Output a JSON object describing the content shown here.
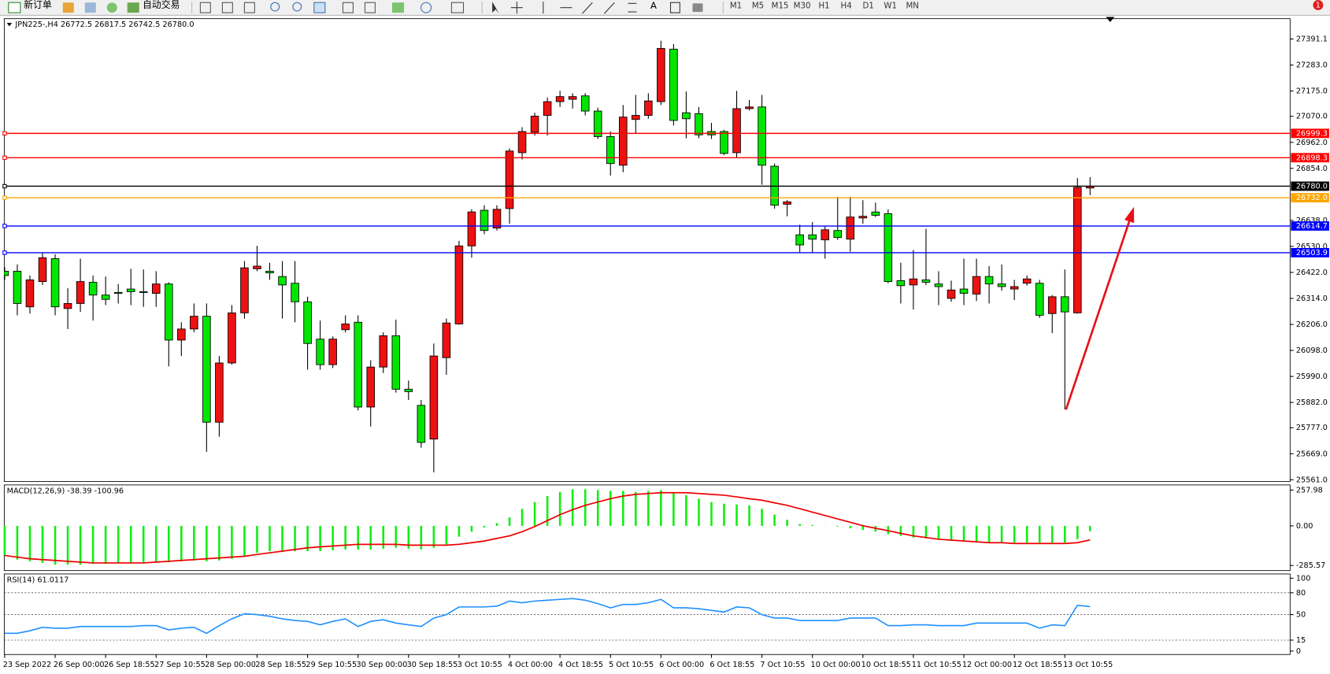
{
  "toolbar": {
    "new_order": "新订单",
    "auto_trading": "自动交易",
    "text_tool": "A",
    "timeframes": [
      "M1",
      "M5",
      "M15",
      "M30",
      "H1",
      "H4",
      "D1",
      "W1",
      "MN"
    ],
    "notifications": 1
  },
  "chart_data": [
    {
      "type": "candlestick",
      "title": "JPN225-,H4  26772.5 26817.5 26742.5 26780.0",
      "categories": [
        "23 Sep 2022",
        null,
        null,
        null,
        "26 Sep 00:00",
        null,
        null,
        null,
        "26 Sep 18:55",
        null,
        null,
        null,
        "27 Sep 10:55",
        null,
        null,
        null,
        "28 Sep 00:00",
        null,
        null,
        null,
        "28 Sep 18:55",
        null,
        null,
        null,
        "29 Sep 10:55",
        null,
        null,
        null,
        "30 Sep 00:00",
        null,
        null,
        null,
        "30 Sep 18:55",
        null,
        null,
        null,
        "3 Oct 10:55",
        null,
        null,
        null,
        "4 Oct 00:00",
        null,
        null,
        null,
        "4 Oct 18:55",
        null,
        null,
        null,
        "5 Oct 10:55",
        null,
        null,
        null,
        "6 Oct 00:00",
        null,
        null,
        null,
        "6 Oct 18:55",
        null,
        null,
        null,
        "7 Oct 10:55",
        null,
        null,
        null,
        "10 Oct 00:00",
        null,
        null,
        null,
        "10 Oct 18:55",
        null,
        null,
        null,
        "11 Oct 10:55",
        null,
        null,
        null,
        "12 Oct 00:00",
        null,
        null,
        null,
        "12 Oct 18:55",
        null,
        null,
        null,
        "13 Oct 10:55",
        null,
        null
      ],
      "open": [
        26427,
        26427,
        26279,
        26384,
        26479,
        26272,
        26293,
        26381,
        26328,
        26339,
        26353,
        26342,
        26335,
        26374,
        26141,
        26187,
        26240,
        25800,
        26046,
        26254,
        26437,
        26427,
        26405,
        26377,
        26300,
        26145,
        26039,
        26184,
        26215,
        25863,
        26029,
        26159,
        25937,
        25870,
        25730,
        26068,
        26208,
        26532,
        26680,
        26606,
        26687,
        26919,
        27004,
        27074,
        27131,
        27141,
        27155,
        27092,
        26986,
        26867,
        27057,
        27074,
        27131,
        27349,
        27085,
        27081,
        27007,
        27007,
        26919,
        27102,
        27109,
        26863,
        26705,
        26578,
        26578,
        26557,
        26596,
        26560,
        26648,
        26673,
        26666,
        26388,
        26370,
        26391,
        26374,
        26314,
        26353,
        26332,
        26405,
        26374,
        26353,
        26377,
        26377,
        26251,
        26321,
        26254,
        26772.5
      ],
      "high": [
        26444,
        26455,
        26409,
        26504,
        26497,
        26356,
        26479,
        26409,
        26405,
        26374,
        26437,
        26434,
        26427,
        26381,
        26215,
        26293,
        26293,
        26075,
        26286,
        26469,
        26532,
        26462,
        26469,
        26469,
        26321,
        26222,
        26156,
        26244,
        26244,
        26057,
        26173,
        26226,
        25973,
        25892,
        26127,
        26230,
        26553,
        26684,
        26701,
        26701,
        26937,
        27025,
        27085,
        27148,
        27176,
        27166,
        27166,
        27106,
        27007,
        27117,
        27159,
        27166,
        27384,
        27370,
        27173,
        27109,
        27043,
        27014,
        27176,
        27138,
        27159,
        26874,
        26722,
        26620,
        26631,
        26613,
        26736,
        26736,
        26722,
        26712,
        26684,
        26462,
        26515,
        26603,
        26427,
        26388,
        26479,
        26479,
        26448,
        26455,
        26391,
        26409,
        26391,
        26328,
        26434,
        26814,
        26817.5
      ],
      "low": [
        26391,
        26244,
        26251,
        26370,
        26244,
        26187,
        26258,
        26222,
        26286,
        26293,
        26286,
        26279,
        26279,
        26032,
        26075,
        26173,
        25677,
        25740,
        26039,
        26230,
        26427,
        26391,
        26230,
        26215,
        26018,
        26018,
        26025,
        26173,
        25849,
        25782,
        26004,
        25923,
        25892,
        25694,
        25592,
        25997,
        26205,
        26483,
        26581,
        26596,
        26624,
        26891,
        26990,
        26990,
        27109,
        27102,
        27074,
        26976,
        26824,
        26838,
        27000,
        27060,
        27117,
        27032,
        26979,
        26979,
        26976,
        26909,
        26898,
        27095,
        26786,
        26687,
        26655,
        26504,
        26504,
        26479,
        26557,
        26508,
        26624,
        26652,
        26377,
        26293,
        26268,
        26370,
        26286,
        26300,
        26286,
        26303,
        26293,
        26346,
        26307,
        26367,
        26233,
        26170,
        25853,
        26251,
        26742.5
      ],
      "close": [
        26409,
        26293,
        26391,
        26483,
        26279,
        26293,
        26384,
        26328,
        26310,
        26335,
        26342,
        26339,
        26374,
        26141,
        26187,
        26240,
        25800,
        26046,
        26254,
        26441,
        26448,
        26420,
        26370,
        26300,
        26127,
        26039,
        26145,
        26208,
        25863,
        26029,
        26159,
        25937,
        25927,
        25716,
        26075,
        26212,
        26532,
        26673,
        26596,
        26684,
        26926,
        27007,
        27071,
        27131,
        27152,
        27152,
        27092,
        26986,
        26874,
        27067,
        27074,
        27134,
        27352,
        27053,
        27060,
        26993,
        26993,
        26916,
        27102,
        27109,
        26867,
        26701,
        26715,
        26536,
        26560,
        26599,
        26567,
        26652,
        26655,
        26659,
        26384,
        26367,
        26395,
        26381,
        26363,
        26349,
        26335,
        26405,
        26374,
        26363,
        26363,
        26395,
        26244,
        26321,
        26258,
        26775,
        26780
      ],
      "up_color": "#ee1111",
      "down_color": "#00e600",
      "ylim": [
        25553.6,
        27475.6
      ],
      "yticks": [
        27391.1,
        {
          "value": 27283,
          "label": "27283.0"
        },
        {
          "value": 27175,
          "label": "27175.0"
        },
        {
          "value": 27070,
          "label": "27070.0"
        },
        {
          "value": 26962,
          "label": "26962.0"
        },
        {
          "value": 26854,
          "label": "26854.0"
        },
        {
          "value": 26638,
          "label": "26638.0"
        },
        {
          "value": 26530,
          "label": "26530.0"
        },
        {
          "value": 26422,
          "label": "26422.0"
        },
        {
          "value": 26314,
          "label": "26314.0"
        },
        {
          "value": 26206,
          "label": "26206.0"
        },
        {
          "value": 26098,
          "label": "26098.0"
        },
        {
          "value": 25990,
          "label": "25990.0"
        },
        {
          "value": 25882,
          "label": "25882.0"
        },
        {
          "value": 25777,
          "label": "25777.0"
        },
        {
          "value": 25669,
          "label": "25669.0"
        },
        {
          "value": 25561,
          "label": "25561.0"
        }
      ],
      "price_lines": [
        {
          "value": 26999.3,
          "label": "26999.3",
          "color": "#ff0000"
        },
        {
          "value": 26898.3,
          "label": "26898.3",
          "color": "#ff0000"
        },
        {
          "value": 26780,
          "label": "26780.0",
          "color": "#000000"
        },
        {
          "value": 26732,
          "label": "26732.0",
          "color": "#ffa500"
        },
        {
          "value": 26614.7,
          "label": "26614.7",
          "color": "#0000ff"
        },
        {
          "value": 26503.9,
          "label": "26503.9",
          "color": "#0000ff"
        }
      ]
    },
    {
      "type": "macd",
      "title": "MACD(12,26,9) -38.39 -100.96",
      "series": [
        {
          "style": "bar",
          "color": "#11ee11",
          "values": [
            -212,
            -243,
            -255,
            -267,
            -280,
            -280,
            -280,
            -274,
            -274,
            -267,
            -267,
            -261,
            -261,
            -261,
            -255,
            -249,
            -255,
            -249,
            -237,
            -219,
            -194,
            -182,
            -182,
            -182,
            -182,
            -182,
            -176,
            -170,
            -170,
            -170,
            -164,
            -158,
            -164,
            -170,
            -158,
            -133,
            -78,
            -42,
            -11,
            20,
            62,
            123,
            172,
            215,
            245,
            264,
            264,
            258,
            252,
            252,
            245,
            252,
            258,
            239,
            221,
            196,
            172,
            160,
            154,
            148,
            123,
            81,
            44,
            13,
            7,
            1,
            -5,
            -17,
            -29,
            -42,
            -60,
            -72,
            -84,
            -90,
            -96,
            -103,
            -109,
            -115,
            -121,
            -121,
            -121,
            -121,
            -121,
            -121,
            -121,
            -96,
            -38.39
          ]
        },
        {
          "style": "line",
          "color": "#ee0000",
          "values": [
            -213,
            -225,
            -237,
            -243,
            -249,
            -255,
            -261,
            -267,
            -267,
            -267,
            -267,
            -267,
            -261,
            -255,
            -249,
            -243,
            -237,
            -231,
            -225,
            -219,
            -206,
            -194,
            -182,
            -170,
            -158,
            -151,
            -145,
            -139,
            -133,
            -133,
            -133,
            -133,
            -139,
            -139,
            -139,
            -139,
            -133,
            -121,
            -109,
            -90,
            -72,
            -42,
            -5,
            38,
            81,
            117,
            148,
            172,
            196,
            215,
            227,
            233,
            239,
            239,
            239,
            233,
            227,
            221,
            209,
            196,
            185,
            166,
            148,
            124,
            99,
            75,
            50,
            26,
            1,
            -17,
            -35,
            -54,
            -72,
            -84,
            -96,
            -103,
            -109,
            -115,
            -121,
            -121,
            -127,
            -127,
            -127,
            -127,
            -127,
            -121,
            -100.96
          ]
        }
      ],
      "ylim": [
        -322,
        295
      ],
      "yticks": [
        {
          "value": 257.98,
          "label": "257.98"
        },
        {
          "value": 0,
          "label": "0.00"
        },
        {
          "value": -285.57,
          "label": "-285.57"
        }
      ]
    },
    {
      "type": "line",
      "title": "RSI(14) 61.0117",
      "color": "#1e90ff",
      "values": [
        24.4,
        24.4,
        27.9,
        32.6,
        31.4,
        31.4,
        33.7,
        33.7,
        33.7,
        33.7,
        33.7,
        34.9,
        34.9,
        29.1,
        31.4,
        32.6,
        24.4,
        34.9,
        44.2,
        51.2,
        50.0,
        47.7,
        44.2,
        41.9,
        40.7,
        36.0,
        40.7,
        44.2,
        33.7,
        40.7,
        43.0,
        38.4,
        36.0,
        33.7,
        45.3,
        50.0,
        60.5,
        60.5,
        60.5,
        61.6,
        68.6,
        66.3,
        68.6,
        69.8,
        70.9,
        72.1,
        69.8,
        65.1,
        59.3,
        64.0,
        64.0,
        66.3,
        70.9,
        59.3,
        59.3,
        58.1,
        55.8,
        53.5,
        60.5,
        59.3,
        50.0,
        45.3,
        45.3,
        41.9,
        41.9,
        41.9,
        41.9,
        45.3,
        45.3,
        45.3,
        34.9,
        34.9,
        36.0,
        36.0,
        34.9,
        34.9,
        34.9,
        38.4,
        38.4,
        38.4,
        38.4,
        38.4,
        31.4,
        36.0,
        34.9,
        62.8,
        61.0117
      ],
      "ylim": [
        -4.7,
        105.8
      ],
      "yticks": [
        100,
        80,
        50,
        15,
        0
      ],
      "levels": [
        80,
        50,
        15
      ]
    }
  ]
}
